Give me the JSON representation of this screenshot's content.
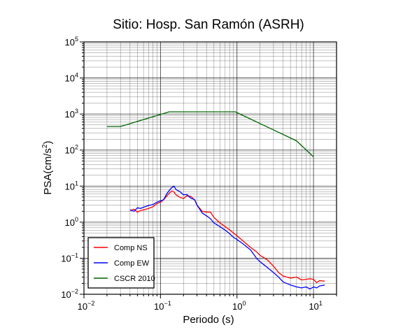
{
  "chart_data": {
    "type": "line",
    "title": "Sitio: Hosp. San Ramón (ASRH)",
    "xlabel": "Periodo (s)",
    "ylabel_main": "PSA(cm/s",
    "ylabel_sup": "2",
    "ylabel_close": ")",
    "x_scale": "log",
    "y_scale": "log",
    "xlim": [
      0.01,
      20
    ],
    "ylim": [
      0.01,
      100000
    ],
    "grid": true,
    "legend_position": "bottom-left",
    "x_ticks": [
      {
        "value": 0.01,
        "base": "10",
        "exp": "−2"
      },
      {
        "value": 0.1,
        "base": "10",
        "exp": "−1"
      },
      {
        "value": 1,
        "base": "10",
        "exp": "0"
      },
      {
        "value": 10,
        "base": "10",
        "exp": "1"
      }
    ],
    "y_ticks": [
      {
        "value": 0.01,
        "base": "10",
        "exp": "−2"
      },
      {
        "value": 0.1,
        "base": "10",
        "exp": "−1"
      },
      {
        "value": 1,
        "base": "10",
        "exp": "0"
      },
      {
        "value": 10,
        "base": "10",
        "exp": "1"
      },
      {
        "value": 100,
        "base": "10",
        "exp": "2"
      },
      {
        "value": 1000,
        "base": "10",
        "exp": "3"
      },
      {
        "value": 10000,
        "base": "10",
        "exp": "4"
      },
      {
        "value": 100000,
        "base": "10",
        "exp": "5"
      }
    ],
    "series": [
      {
        "name": "Comp NS",
        "color": "#ff0000",
        "x": [
          0.04,
          0.045,
          0.05,
          0.055,
          0.06,
          0.07,
          0.08,
          0.09,
          0.1,
          0.11,
          0.12,
          0.13,
          0.14,
          0.15,
          0.16,
          0.18,
          0.2,
          0.22,
          0.25,
          0.28,
          0.3,
          0.35,
          0.4,
          0.45,
          0.5,
          0.6,
          0.7,
          0.8,
          0.9,
          1.0,
          1.2,
          1.5,
          1.8,
          2.0,
          2.5,
          3.0,
          3.5,
          4.0,
          5.0,
          6.0,
          7.0,
          8.0,
          9.0,
          10.0,
          11.0,
          12.0,
          14.0
        ],
        "y": [
          2.1,
          2.3,
          1.9,
          2.1,
          2.2,
          2.4,
          2.7,
          3.3,
          3.6,
          4.2,
          5.2,
          6.3,
          7.3,
          6.9,
          5.7,
          4.9,
          4.5,
          5.4,
          5.2,
          4.1,
          3.0,
          2.0,
          1.9,
          1.9,
          1.35,
          0.95,
          0.75,
          0.62,
          0.5,
          0.42,
          0.3,
          0.2,
          0.15,
          0.12,
          0.09,
          0.06,
          0.04,
          0.032,
          0.028,
          0.03,
          0.025,
          0.026,
          0.027,
          0.026,
          0.021,
          0.024,
          0.023
        ]
      },
      {
        "name": "Comp EW",
        "color": "#0000ff",
        "x": [
          0.04,
          0.045,
          0.05,
          0.055,
          0.06,
          0.07,
          0.08,
          0.09,
          0.1,
          0.11,
          0.12,
          0.13,
          0.14,
          0.15,
          0.16,
          0.18,
          0.2,
          0.22,
          0.25,
          0.28,
          0.3,
          0.35,
          0.4,
          0.45,
          0.5,
          0.6,
          0.7,
          0.8,
          0.9,
          1.0,
          1.2,
          1.5,
          1.8,
          2.0,
          2.5,
          3.0,
          3.5,
          4.0,
          5.0,
          6.0,
          7.0,
          8.0,
          9.0,
          10.0,
          11.0,
          12.0,
          14.0
        ],
        "y": [
          2.2,
          2.0,
          2.5,
          2.4,
          2.6,
          2.9,
          3.1,
          3.6,
          3.9,
          4.2,
          6.0,
          7.5,
          9.0,
          10.0,
          8.0,
          7.0,
          5.7,
          5.9,
          4.6,
          4.2,
          3.0,
          1.8,
          1.5,
          1.25,
          0.95,
          0.75,
          0.6,
          0.48,
          0.38,
          0.33,
          0.25,
          0.17,
          0.1,
          0.08,
          0.055,
          0.04,
          0.03,
          0.022,
          0.018,
          0.016,
          0.015,
          0.016,
          0.014,
          0.016,
          0.015,
          0.017,
          0.018
        ]
      },
      {
        "name": "CSCR 2010",
        "color": "#006400",
        "x": [
          0.02,
          0.03,
          0.13,
          0.95,
          6.0,
          10.0
        ],
        "y": [
          450,
          450,
          1150,
          1150,
          180,
          65
        ]
      }
    ]
  }
}
